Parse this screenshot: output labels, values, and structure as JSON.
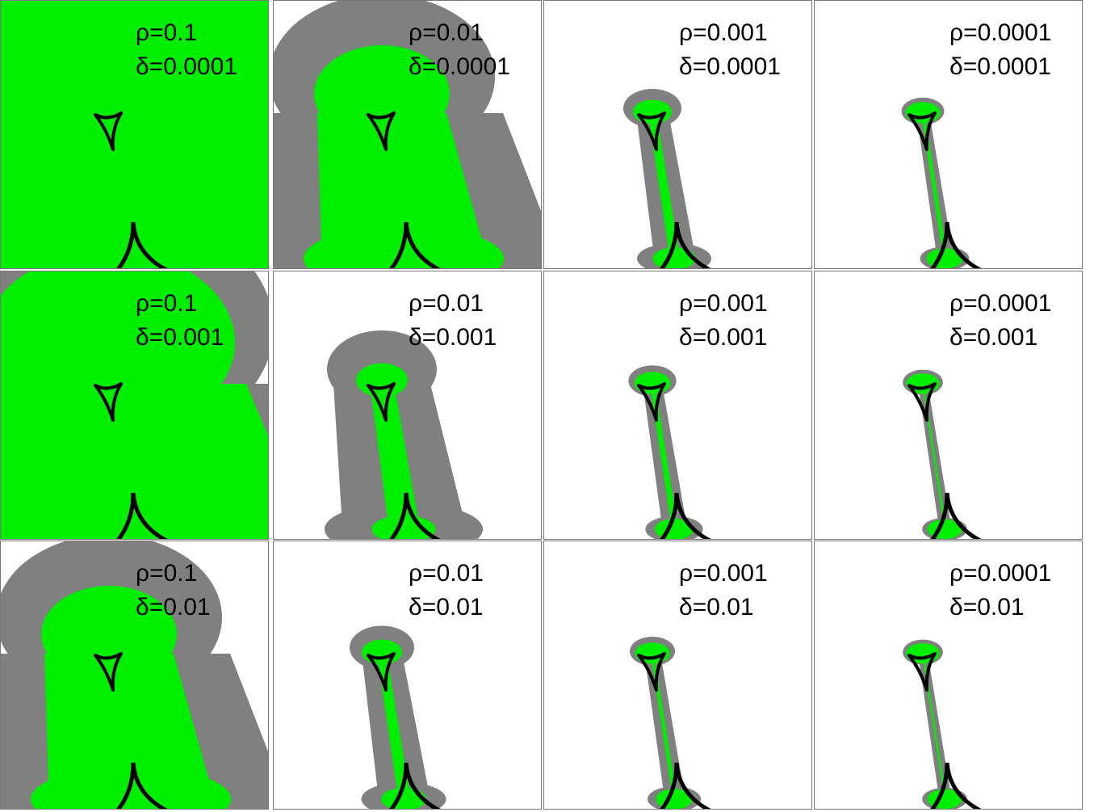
{
  "panels": [
    {
      "rho": "ρ=0.1",
      "delta": "δ=0.0001"
    },
    {
      "rho": "ρ=0.01",
      "delta": "δ=0.0001"
    },
    {
      "rho": "ρ=0.001",
      "delta": "δ=0.0001"
    },
    {
      "rho": "ρ=0.0001",
      "delta": "δ=0.0001"
    },
    {
      "rho": "ρ=0.1",
      "delta": "δ=0.001"
    },
    {
      "rho": "ρ=0.01",
      "delta": "δ=0.001"
    },
    {
      "rho": "ρ=0.001",
      "delta": "δ=0.001"
    },
    {
      "rho": "ρ=0.0001",
      "delta": "δ=0.001"
    },
    {
      "rho": "ρ=0.1",
      "delta": "δ=0.01"
    },
    {
      "rho": "ρ=0.01",
      "delta": "δ=0.01"
    },
    {
      "rho": "ρ=0.001",
      "delta": "δ=0.01"
    },
    {
      "rho": "ρ=0.0001",
      "delta": "δ=0.01"
    }
  ]
}
